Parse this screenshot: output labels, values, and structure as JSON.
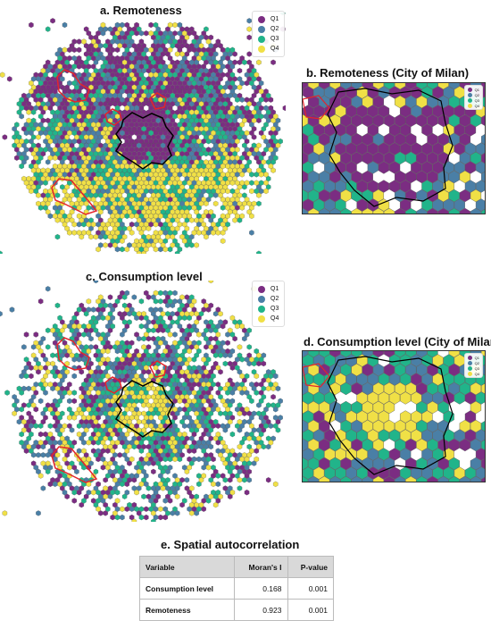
{
  "panels": {
    "a": {
      "title": "a. Remoteness"
    },
    "b": {
      "title": "b. Remoteness (City of Milan)"
    },
    "c": {
      "title": "c. Consumption level"
    },
    "d": {
      "title": "d. Consumption level (City of Milan)"
    },
    "e": {
      "title": "e. Spatial autocorrelation"
    }
  },
  "legend": {
    "items": [
      {
        "label": "Q1",
        "color": "#7b2d82"
      },
      {
        "label": "Q2",
        "color": "#4a7fa6"
      },
      {
        "label": "Q3",
        "color": "#21b48a"
      },
      {
        "label": "Q4",
        "color": "#f0e046"
      }
    ]
  },
  "colors": {
    "municipality_outline": "#e3242b",
    "city_outline": "#000000",
    "hex_edge": "#555555"
  },
  "table": {
    "headers": [
      "Variable",
      "Moran's I",
      "P-value"
    ],
    "rows": [
      {
        "variable": "Consumption level",
        "morans_i": "0.168",
        "p_value": "0.001"
      },
      {
        "variable": "Remoteness",
        "morans_i": "0.923",
        "p_value": "0.001"
      }
    ]
  }
}
